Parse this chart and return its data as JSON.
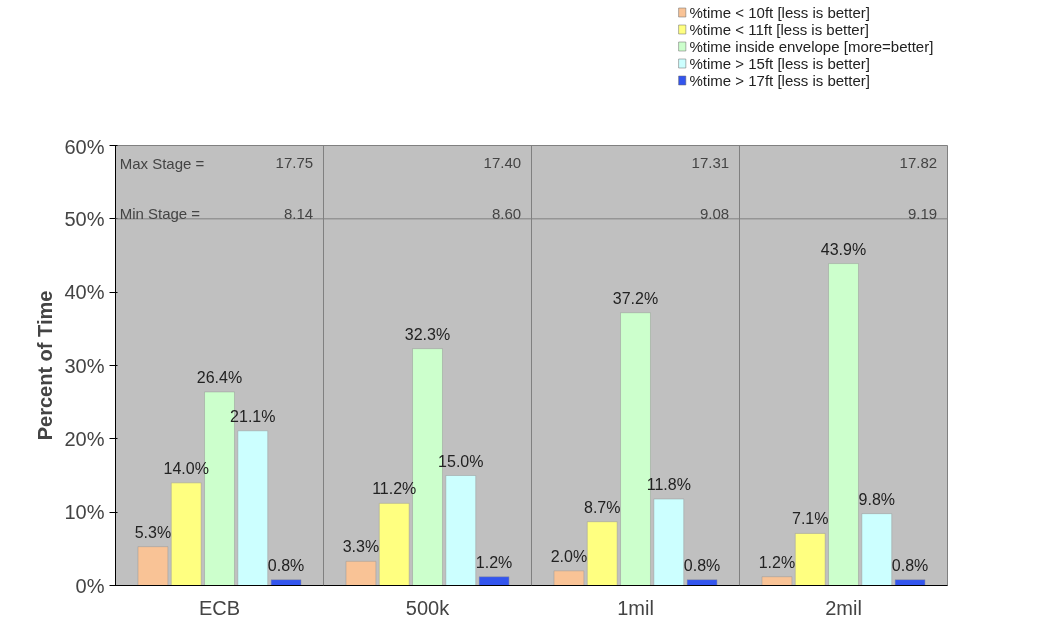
{
  "chart_data": {
    "type": "bar",
    "ylabel": "Percent of Time",
    "categories": [
      "ECB",
      "500k",
      "1mil",
      "2mil"
    ],
    "series": [
      {
        "name": "%time < 10ft [less is better]",
        "color": "#f9c396",
        "values": [
          5.3,
          3.3,
          2.0,
          1.2
        ],
        "value_labels": [
          "5.3%",
          "3.3%",
          "2.0%",
          "1.2%"
        ]
      },
      {
        "name": "%time < 11ft [less is better]",
        "color": "#ffff80",
        "values": [
          14.0,
          11.2,
          8.7,
          7.1
        ],
        "value_labels": [
          "14.0%",
          "11.2%",
          "8.7%",
          "7.1%"
        ]
      },
      {
        "name": "%time inside envelope [more=better]",
        "color": "#ccffcc",
        "values": [
          26.4,
          32.3,
          37.2,
          43.9
        ],
        "value_labels": [
          "26.4%",
          "32.3%",
          "37.2%",
          "43.9%"
        ]
      },
      {
        "name": "%time > 15ft [less is better]",
        "color": "#ccffff",
        "values": [
          21.1,
          15.0,
          11.8,
          9.8
        ],
        "value_labels": [
          "21.1%",
          "15.0%",
          "11.8%",
          "9.8%"
        ]
      },
      {
        "name": "%time > 17ft [less is better]",
        "color": "#3355ee",
        "values": [
          0.8,
          1.2,
          0.8,
          0.8
        ],
        "value_labels": [
          "0.8%",
          "1.2%",
          "0.8%",
          "0.8%"
        ]
      }
    ],
    "ylim": [
      0,
      60
    ],
    "yticks": [
      {
        "value": 0,
        "label": "0%"
      },
      {
        "value": 10,
        "label": "10%"
      },
      {
        "value": 20,
        "label": "20%"
      },
      {
        "value": 30,
        "label": "30%"
      },
      {
        "value": 40,
        "label": "40%"
      },
      {
        "value": 50,
        "label": "50%"
      },
      {
        "value": 60,
        "label": "60%"
      }
    ],
    "ref_lines": [
      {
        "axis": "y",
        "value": 50,
        "label": null,
        "color": "#808080"
      }
    ],
    "annotations": [
      "Max Stage =",
      "Min Stage =",
      "17.75",
      "8.14",
      "17.40",
      "8.60",
      "17.31",
      "9.08",
      "17.82",
      "9.19"
    ],
    "grid": "x",
    "legend": "top right"
  }
}
